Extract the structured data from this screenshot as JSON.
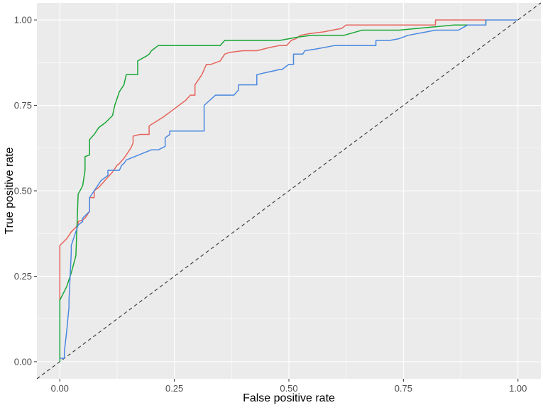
{
  "chart_data": {
    "type": "line",
    "title": "",
    "xlabel": "False positive rate",
    "ylabel": "True positive rate",
    "xlim": [
      -0.05,
      1.05
    ],
    "ylim": [
      -0.05,
      1.05
    ],
    "x_ticks": [
      0.0,
      0.25,
      0.5,
      0.75,
      1.0
    ],
    "x_tick_labels": [
      "0.00",
      "0.25",
      "0.50",
      "0.75",
      "1.00"
    ],
    "y_ticks": [
      0.0,
      0.25,
      0.5,
      0.75,
      1.0
    ],
    "y_tick_labels": [
      "0.00",
      "0.25",
      "0.50",
      "0.75",
      "1.00"
    ],
    "grid": true,
    "legend": "none",
    "background_color": "#ebebeb",
    "grid_color": "#ffffff",
    "reference_line": {
      "x": [
        0,
        1
      ],
      "y": [
        0,
        1
      ],
      "style": "dashed",
      "color": "#333333"
    },
    "series": [
      {
        "color": "#e6645c",
        "x": [
          0.0,
          0.0,
          0.015,
          0.025,
          0.04,
          0.04,
          0.05,
          0.055,
          0.065,
          0.065,
          0.075,
          0.075,
          0.085,
          0.095,
          0.105,
          0.115,
          0.125,
          0.13,
          0.14,
          0.145,
          0.155,
          0.16,
          0.16,
          0.175,
          0.19,
          0.195,
          0.195,
          0.225,
          0.245,
          0.265,
          0.275,
          0.285,
          0.295,
          0.295,
          0.31,
          0.32,
          0.33,
          0.35,
          0.36,
          0.37,
          0.4,
          0.43,
          0.46,
          0.48,
          0.495,
          0.505,
          0.515,
          0.515,
          0.525,
          0.545,
          0.575,
          0.595,
          0.615,
          0.625,
          0.645,
          0.66,
          0.82,
          0.82,
          0.93
        ],
        "y": [
          0.18,
          0.34,
          0.36,
          0.38,
          0.4,
          0.41,
          0.415,
          0.42,
          0.44,
          0.48,
          0.48,
          0.5,
          0.51,
          0.525,
          0.54,
          0.555,
          0.575,
          0.58,
          0.595,
          0.605,
          0.625,
          0.64,
          0.66,
          0.665,
          0.665,
          0.665,
          0.69,
          0.715,
          0.735,
          0.755,
          0.765,
          0.78,
          0.78,
          0.81,
          0.84,
          0.87,
          0.87,
          0.88,
          0.9,
          0.905,
          0.91,
          0.91,
          0.92,
          0.925,
          0.925,
          0.94,
          0.945,
          0.945,
          0.955,
          0.96,
          0.965,
          0.97,
          0.975,
          0.985,
          0.985,
          0.985,
          0.985,
          1.0,
          1.0
        ]
      },
      {
        "color": "#19a635",
        "x": [
          0.0,
          0.0,
          0.015,
          0.025,
          0.035,
          0.04,
          0.05,
          0.055,
          0.055,
          0.065,
          0.065,
          0.075,
          0.085,
          0.1,
          0.115,
          0.12,
          0.13,
          0.14,
          0.145,
          0.16,
          0.17,
          0.17,
          0.19,
          0.195,
          0.2,
          0.215,
          0.235,
          0.255,
          0.35,
          0.36,
          0.4,
          0.48,
          0.5,
          0.52,
          0.55,
          0.62,
          0.66,
          0.74,
          0.86,
          0.93,
          0.93,
          0.93
        ],
        "y": [
          0.0,
          0.18,
          0.22,
          0.26,
          0.31,
          0.49,
          0.515,
          0.56,
          0.6,
          0.605,
          0.65,
          0.665,
          0.685,
          0.7,
          0.72,
          0.75,
          0.79,
          0.81,
          0.84,
          0.84,
          0.84,
          0.88,
          0.895,
          0.9,
          0.91,
          0.925,
          0.925,
          0.925,
          0.925,
          0.94,
          0.94,
          0.94,
          0.945,
          0.95,
          0.955,
          0.955,
          0.97,
          0.97,
          0.985,
          0.985,
          0.985,
          1.0
        ]
      },
      {
        "color": "#4a88e0",
        "x": [
          0.0,
          0.01,
          0.01,
          0.015,
          0.02,
          0.02,
          0.025,
          0.025,
          0.03,
          0.035,
          0.04,
          0.05,
          0.05,
          0.065,
          0.065,
          0.08,
          0.09,
          0.1,
          0.105,
          0.105,
          0.13,
          0.135,
          0.14,
          0.145,
          0.2,
          0.215,
          0.23,
          0.23,
          0.24,
          0.24,
          0.315,
          0.315,
          0.34,
          0.38,
          0.39,
          0.39,
          0.43,
          0.43,
          0.48,
          0.485,
          0.49,
          0.5,
          0.51,
          0.51,
          0.53,
          0.535,
          0.56,
          0.6,
          0.65,
          0.68,
          0.69,
          0.69,
          0.72,
          0.74,
          0.75,
          0.76,
          0.8,
          0.82,
          0.83,
          0.87,
          0.89,
          0.93,
          0.93,
          1.0
        ],
        "y": [
          0.01,
          0.01,
          0.03,
          0.09,
          0.16,
          0.18,
          0.32,
          0.34,
          0.36,
          0.38,
          0.4,
          0.41,
          0.42,
          0.44,
          0.48,
          0.51,
          0.53,
          0.54,
          0.545,
          0.56,
          0.56,
          0.575,
          0.58,
          0.59,
          0.62,
          0.62,
          0.63,
          0.655,
          0.665,
          0.675,
          0.675,
          0.75,
          0.78,
          0.78,
          0.795,
          0.81,
          0.81,
          0.84,
          0.855,
          0.855,
          0.86,
          0.87,
          0.87,
          0.9,
          0.9,
          0.91,
          0.915,
          0.925,
          0.925,
          0.925,
          0.925,
          0.94,
          0.94,
          0.945,
          0.95,
          0.955,
          0.965,
          0.97,
          0.97,
          0.97,
          0.985,
          0.985,
          1.0,
          1.0
        ]
      }
    ]
  }
}
